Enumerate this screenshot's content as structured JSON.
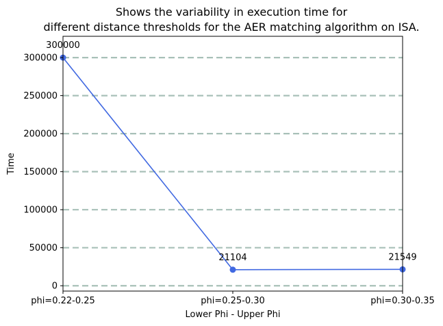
{
  "chart_data": {
    "type": "line",
    "title": "Shows the variability in execution time for\ndifferent distance thresholds for the AER matching algorithm on ISA.",
    "xlabel": "Lower Phi - Upper Phi",
    "ylabel": "Time",
    "categories": [
      "phi=0.22-0.25",
      "phi=0.25-0.30",
      "phi=0.30-0.35"
    ],
    "series": [
      {
        "values": [
          300000,
          21104,
          21549
        ]
      }
    ],
    "data_labels": [
      "300000",
      "21104",
      "21549"
    ],
    "yticks": [
      0,
      50000,
      100000,
      150000,
      200000,
      250000,
      300000
    ],
    "ylim": [
      -7000,
      328000
    ],
    "grid": "horizontal dashed",
    "legend": "none",
    "colors": {
      "line": "#4169e1",
      "grid": "#a8c0b8",
      "axis": "#000000"
    }
  }
}
